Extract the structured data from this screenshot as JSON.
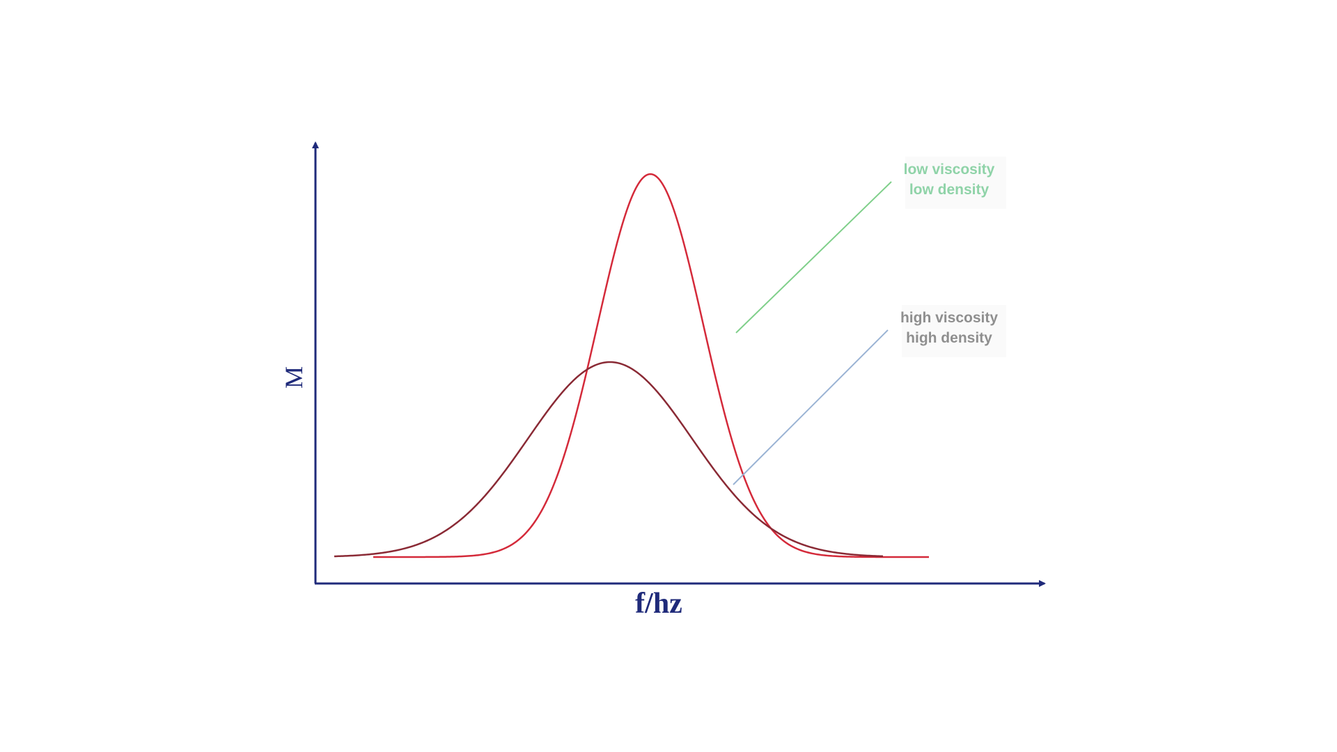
{
  "axes": {
    "y_label": "M",
    "x_label": "f/hz"
  },
  "annotations": [
    {
      "lines": [
        "low viscosity",
        "low density"
      ]
    },
    {
      "lines": [
        "high viscosity",
        "high density"
      ]
    }
  ]
}
